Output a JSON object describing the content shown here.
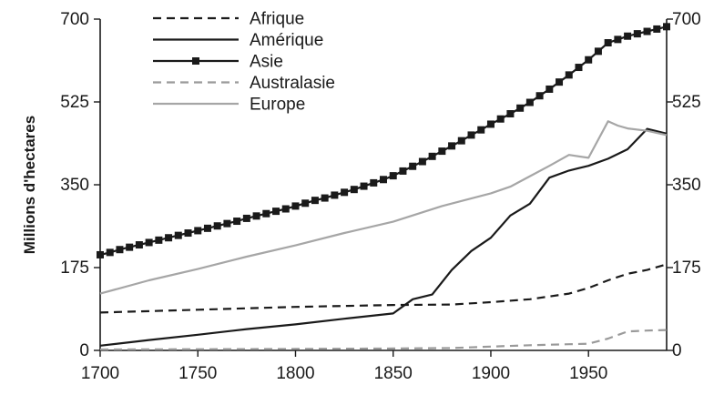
{
  "chart_data": {
    "type": "line",
    "title": "",
    "xlabel": "",
    "ylabel": "Millions d'hectares",
    "xlim": [
      1700,
      1990
    ],
    "ylim": [
      0,
      700
    ],
    "x_ticks": [
      "1700",
      "1750",
      "1800",
      "1850",
      "1900",
      "1950"
    ],
    "y_ticks": [
      "0",
      "175",
      "350",
      "525",
      "700"
    ],
    "y_ticks_right": [
      "0",
      "175",
      "350",
      "525",
      "700"
    ],
    "grid": false,
    "legend_position": "top-left",
    "series": [
      {
        "name": "Afrique",
        "color": "#1a1a1a",
        "style": "dashed",
        "marker": "none",
        "x": [
          1700,
          1750,
          1800,
          1850,
          1880,
          1900,
          1920,
          1940,
          1950,
          1960,
          1970,
          1980,
          1990
        ],
        "y": [
          80,
          86,
          92,
          96,
          97,
          102,
          108,
          120,
          132,
          148,
          162,
          170,
          182
        ]
      },
      {
        "name": "Amérique",
        "color": "#1a1a1a",
        "style": "solid",
        "marker": "none",
        "x": [
          1700,
          1725,
          1750,
          1775,
          1800,
          1825,
          1850,
          1860,
          1870,
          1880,
          1890,
          1900,
          1910,
          1920,
          1930,
          1940,
          1950,
          1960,
          1970,
          1980,
          1990
        ],
        "y": [
          10,
          22,
          33,
          45,
          55,
          67,
          78,
          108,
          118,
          170,
          210,
          238,
          285,
          310,
          365,
          380,
          390,
          405,
          425,
          468,
          458
        ]
      },
      {
        "name": "Asie",
        "color": "#1a1a1a",
        "style": "solid",
        "marker": "square",
        "x": [
          1700,
          1705,
          1710,
          1715,
          1720,
          1725,
          1730,
          1735,
          1740,
          1745,
          1750,
          1755,
          1760,
          1765,
          1770,
          1775,
          1780,
          1785,
          1790,
          1795,
          1800,
          1805,
          1810,
          1815,
          1820,
          1825,
          1830,
          1835,
          1840,
          1845,
          1850,
          1855,
          1860,
          1865,
          1870,
          1875,
          1880,
          1885,
          1890,
          1895,
          1900,
          1905,
          1910,
          1915,
          1920,
          1925,
          1930,
          1935,
          1940,
          1945,
          1950,
          1955,
          1960,
          1965,
          1970,
          1975,
          1980,
          1985,
          1990
        ],
        "y": [
          202,
          207,
          213,
          218,
          223,
          228,
          233,
          238,
          243,
          248,
          253,
          258,
          263,
          268,
          273,
          279,
          284,
          289,
          294,
          299,
          305,
          311,
          317,
          322,
          328,
          334,
          340,
          347,
          354,
          361,
          369,
          379,
          389,
          399,
          410,
          421,
          432,
          443,
          455,
          466,
          478,
          489,
          500,
          512,
          524,
          538,
          552,
          567,
          582,
          598,
          614,
          632,
          650,
          657,
          664,
          669,
          674,
          679,
          684
        ]
      },
      {
        "name": "Australasie",
        "color": "#9a9a9a",
        "style": "dashed",
        "marker": "none",
        "x": [
          1700,
          1800,
          1850,
          1880,
          1900,
          1920,
          1940,
          1950,
          1960,
          1970,
          1980,
          1990
        ],
        "y": [
          2,
          3,
          4,
          5,
          8,
          11,
          13,
          14,
          25,
          40,
          42,
          43
        ]
      },
      {
        "name": "Europe",
        "color": "#a6a6a6",
        "style": "solid",
        "marker": "none",
        "x": [
          1700,
          1725,
          1750,
          1775,
          1800,
          1825,
          1850,
          1875,
          1900,
          1910,
          1920,
          1930,
          1940,
          1950,
          1960,
          1965,
          1970,
          1980,
          1990
        ],
        "y": [
          120,
          148,
          172,
          198,
          222,
          248,
          272,
          305,
          332,
          346,
          368,
          390,
          413,
          407,
          484,
          475,
          469,
          464,
          455
        ]
      }
    ]
  }
}
